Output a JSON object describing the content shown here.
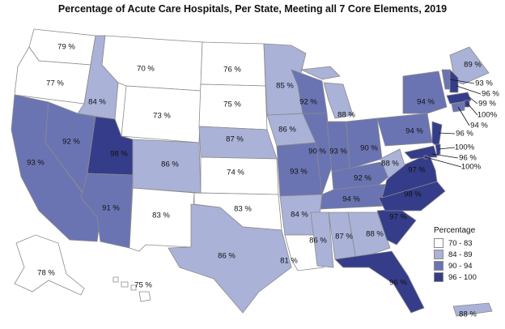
{
  "title": "Percentage of Acute Care Hospitals, Per State, Meeting all 7 Core Elements, 2019",
  "legend": {
    "title": "Percentage",
    "bins": [
      {
        "label": "70 - 83",
        "color": "#ffffff"
      },
      {
        "label": "84 - 89",
        "color": "#aab2d8"
      },
      {
        "label": "90 - 94",
        "color": "#6b74b2"
      },
      {
        "label": "96 - 100",
        "color": "#353d8a"
      }
    ]
  },
  "states": [
    {
      "id": "WA",
      "label": "79 %",
      "value": 79
    },
    {
      "id": "OR",
      "label": "77 %",
      "value": 77
    },
    {
      "id": "CA",
      "label": "93 %",
      "value": 93
    },
    {
      "id": "ID",
      "label": "84 %",
      "value": 84
    },
    {
      "id": "NV",
      "label": "92 %",
      "value": 92
    },
    {
      "id": "MT",
      "label": "70 %",
      "value": 70
    },
    {
      "id": "WY",
      "label": "73 %",
      "value": 73
    },
    {
      "id": "UT",
      "label": "98 %",
      "value": 98
    },
    {
      "id": "AZ",
      "label": "91 %",
      "value": 91
    },
    {
      "id": "CO",
      "label": "86 %",
      "value": 86
    },
    {
      "id": "NM",
      "label": "83 %",
      "value": 83
    },
    {
      "id": "ND",
      "label": "76 %",
      "value": 76
    },
    {
      "id": "SD",
      "label": "75 %",
      "value": 75
    },
    {
      "id": "NE",
      "label": "87 %",
      "value": 87
    },
    {
      "id": "KS",
      "label": "74 %",
      "value": 74
    },
    {
      "id": "OK",
      "label": "83 %",
      "value": 83
    },
    {
      "id": "TX",
      "label": "86 %",
      "value": 86
    },
    {
      "id": "MN",
      "label": "85 %",
      "value": 85
    },
    {
      "id": "IA",
      "label": "86 %",
      "value": 86
    },
    {
      "id": "MO",
      "label": "93 %",
      "value": 93
    },
    {
      "id": "AR",
      "label": "84 %",
      "value": 84
    },
    {
      "id": "LA",
      "label": "81 %",
      "value": 81
    },
    {
      "id": "WI",
      "label": "92 %",
      "value": 92
    },
    {
      "id": "IL",
      "label": "90 %",
      "value": 90
    },
    {
      "id": "MI",
      "label": "88 %",
      "value": 88
    },
    {
      "id": "IN",
      "label": "93 %",
      "value": 93
    },
    {
      "id": "OH",
      "label": "90 %",
      "value": 90
    },
    {
      "id": "KY",
      "label": "92 %",
      "value": 92
    },
    {
      "id": "TN",
      "label": "94 %",
      "value": 94
    },
    {
      "id": "MS",
      "label": "86 %",
      "value": 86
    },
    {
      "id": "AL",
      "label": "87 %",
      "value": 87
    },
    {
      "id": "GA",
      "label": "88 %",
      "value": 88
    },
    {
      "id": "FL",
      "label": "96 %",
      "value": 96
    },
    {
      "id": "SC",
      "label": "97 %",
      "value": 97
    },
    {
      "id": "NC",
      "label": "98 %",
      "value": 98
    },
    {
      "id": "VA",
      "label": "97 %",
      "value": 97
    },
    {
      "id": "WV",
      "label": "88 %",
      "value": 88
    },
    {
      "id": "PA",
      "label": "94 %",
      "value": 94
    },
    {
      "id": "NY",
      "label": "94 %",
      "value": 94
    },
    {
      "id": "ME",
      "label": "89 %",
      "value": 89
    },
    {
      "id": "VT",
      "label": "93 %",
      "value": 93
    },
    {
      "id": "NH",
      "label": "96 %",
      "value": 96
    },
    {
      "id": "MA",
      "label": "99 %",
      "value": 99
    },
    {
      "id": "RI",
      "label": "100%",
      "value": 100
    },
    {
      "id": "CT",
      "label": "94 %",
      "value": 94
    },
    {
      "id": "NJ",
      "label": "96 %",
      "value": 96
    },
    {
      "id": "DE",
      "label": "100%",
      "value": 100
    },
    {
      "id": "MD",
      "label": "96 %",
      "value": 96
    },
    {
      "id": "DC",
      "label": "100%",
      "value": 100
    },
    {
      "id": "AK",
      "label": "78 %",
      "value": 78
    },
    {
      "id": "HI",
      "label": "75 %",
      "value": 75
    },
    {
      "id": "PR",
      "label": "88 %",
      "value": 88
    }
  ]
}
